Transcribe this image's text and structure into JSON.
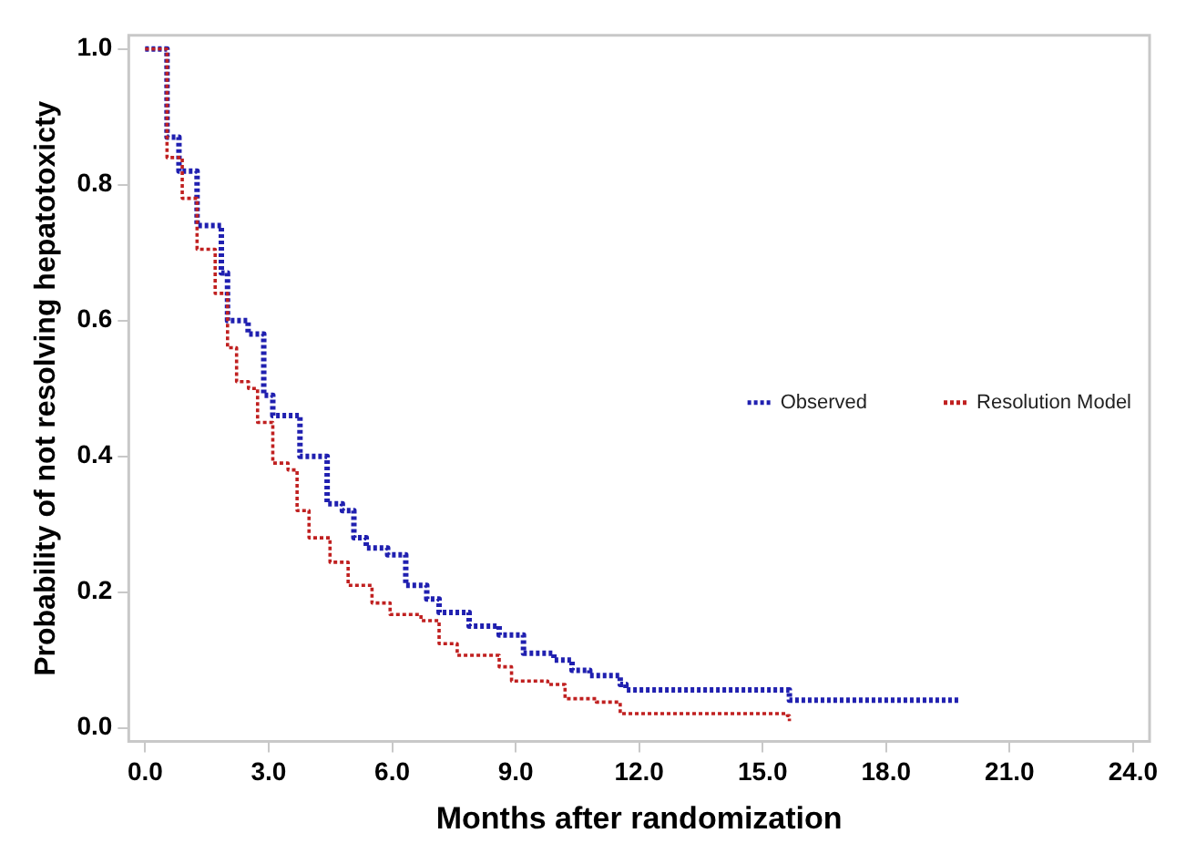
{
  "chart_data": {
    "type": "step",
    "xlabel": "Months after randomization",
    "ylabel": "Probability of not resolving hepatotoxicty",
    "xlim": [
      -0.4,
      24.4
    ],
    "ylim": [
      -0.02,
      1.02
    ],
    "xticks": [
      {
        "value": 0,
        "label": "0.0"
      },
      {
        "value": 3,
        "label": "3.0"
      },
      {
        "value": 6,
        "label": "6.0"
      },
      {
        "value": 9,
        "label": "9.0"
      },
      {
        "value": 12,
        "label": "12.0"
      },
      {
        "value": 15,
        "label": "15.0"
      },
      {
        "value": 18,
        "label": "18.0"
      },
      {
        "value": 21,
        "label": "21.0"
      },
      {
        "value": 24,
        "label": "24.0"
      }
    ],
    "yticks": [
      {
        "value": 0,
        "label": "0.0"
      },
      {
        "value": 0.2,
        "label": "0.2"
      },
      {
        "value": 0.4,
        "label": "0.4"
      },
      {
        "value": 0.6,
        "label": "0.6"
      },
      {
        "value": 0.8,
        "label": "0.8"
      },
      {
        "value": 1,
        "label": "1.0"
      }
    ],
    "grid": false,
    "legend": "right",
    "marker": "none",
    "line_style": "dotted",
    "series": [
      {
        "name": "Observed",
        "color": "#2020b0",
        "x": [
          0,
          0.53,
          0.82,
          1.26,
          1.85,
          2.0,
          2.5,
          2.88,
          3.1,
          3.54,
          3.76,
          3.98,
          4.42,
          4.79,
          5.07,
          5.37,
          5.89,
          6.33,
          6.84,
          7.14,
          7.87,
          8.6,
          9.19,
          9.93,
          10.37,
          10.8,
          11.54,
          11.68,
          15.5,
          15.65,
          19.8
        ],
        "values": [
          1.0,
          0.87,
          0.82,
          0.74,
          0.67,
          0.6,
          0.58,
          0.49,
          0.46,
          0.46,
          0.4,
          0.4,
          0.33,
          0.32,
          0.28,
          0.265,
          0.255,
          0.21,
          0.19,
          0.17,
          0.15,
          0.137,
          0.11,
          0.1,
          0.085,
          0.077,
          0.064,
          0.056,
          0.056,
          0.041,
          0.041
        ]
      },
      {
        "name": "Resolution Model",
        "color": "#c02020",
        "x": [
          0,
          0.53,
          0.9,
          1.26,
          1.7,
          2.0,
          2.22,
          2.51,
          2.73,
          3.1,
          3.47,
          3.69,
          3.98,
          4.49,
          4.93,
          5.51,
          5.95,
          6.7,
          7.14,
          7.58,
          8.6,
          8.9,
          9.78,
          10.2,
          10.96,
          11.54,
          15.6,
          15.65
        ],
        "values": [
          1.0,
          0.84,
          0.78,
          0.705,
          0.64,
          0.56,
          0.51,
          0.5,
          0.45,
          0.39,
          0.38,
          0.32,
          0.28,
          0.244,
          0.21,
          0.184,
          0.167,
          0.158,
          0.124,
          0.107,
          0.09,
          0.069,
          0.064,
          0.043,
          0.038,
          0.021,
          0.018,
          0.01
        ]
      }
    ]
  }
}
